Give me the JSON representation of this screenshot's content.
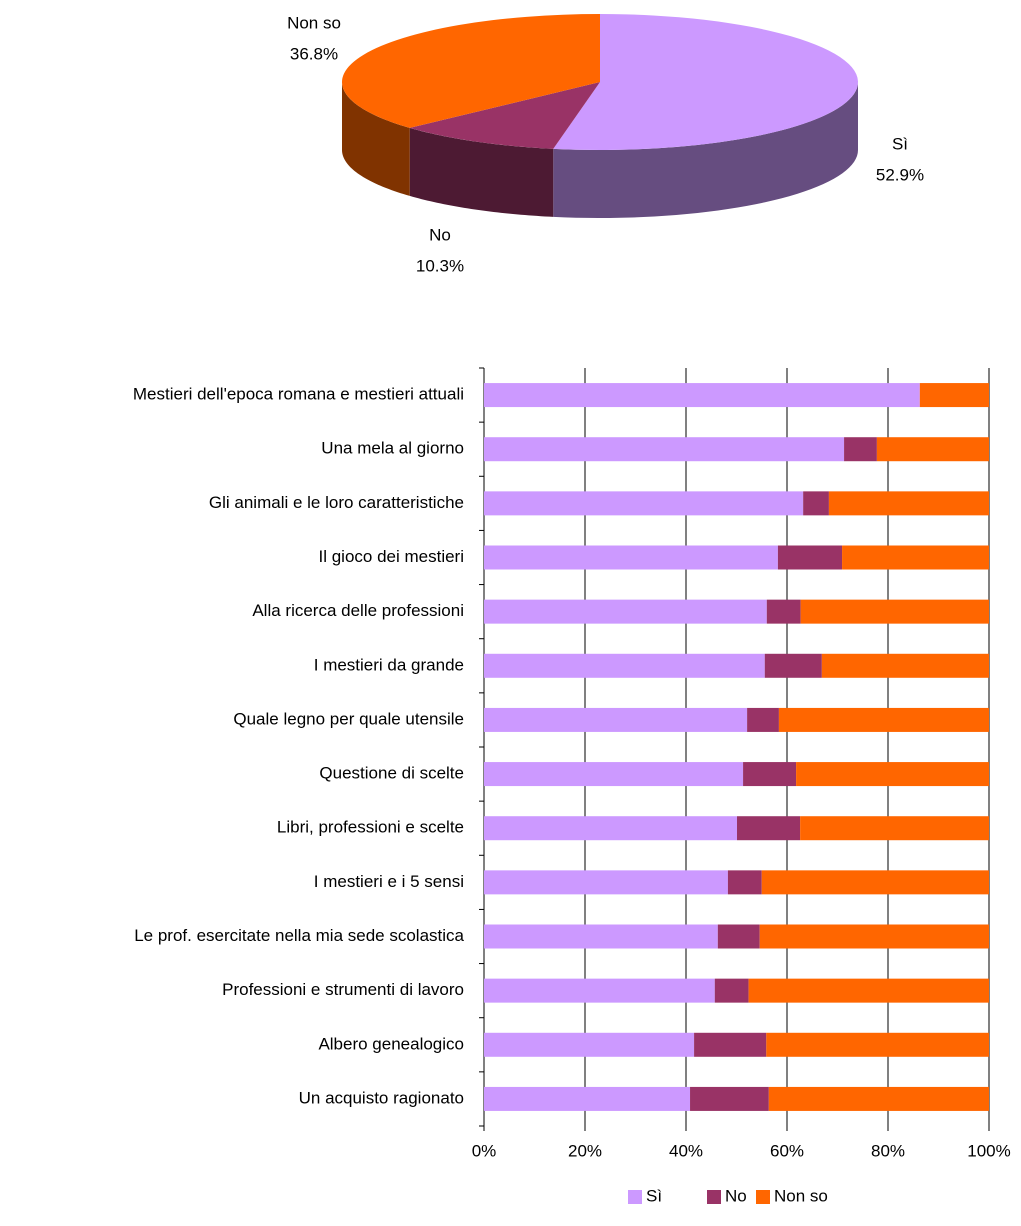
{
  "chart_data": [
    {
      "type": "pie",
      "categories": [
        "Sì",
        "No",
        "Non so"
      ],
      "values": [
        52.9,
        10.3,
        36.8
      ],
      "value_labels": [
        "52.9%",
        "10.3%",
        "36.8%"
      ],
      "colors": [
        "#cc99ff",
        "#993366",
        "#ff6600"
      ]
    },
    {
      "type": "bar",
      "orientation": "horizontal",
      "stacked": true,
      "categories": [
        "Mestieri dell'epoca romana e mestieri attuali",
        "Una mela al giorno",
        "Gli animali e le loro caratteristiche",
        "Il gioco dei mestieri",
        "Alla ricerca delle professioni",
        "I mestieri da grande",
        "Quale legno per quale utensile",
        "Questione di scelte",
        "Libri, professioni e scelte",
        "I mestieri e i 5 sensi",
        "Le prof. esercitate nella mia sede scolastica",
        "Professioni e strumenti di lavoro",
        "Albero genealogico",
        "Un acquisto ragionato"
      ],
      "series": [
        {
          "name": "Sì",
          "color": "#cc99ff",
          "values": [
            86.3,
            71.3,
            63.2,
            58.2,
            56.0,
            55.6,
            52.1,
            51.3,
            50.1,
            48.3,
            46.3,
            45.7,
            41.6,
            40.8
          ]
        },
        {
          "name": "No",
          "color": "#993366",
          "values": [
            0,
            6.5,
            5.1,
            12.7,
            6.7,
            11.3,
            6.3,
            10.5,
            12.5,
            6.7,
            8.3,
            6.7,
            14.3,
            15.6
          ]
        },
        {
          "name": "Non so",
          "color": "#ff6600",
          "values": [
            13.7,
            22.2,
            31.7,
            29.1,
            37.3,
            33.1,
            41.6,
            38.2,
            37.4,
            45.0,
            45.4,
            47.6,
            44.1,
            43.6
          ]
        }
      ],
      "xlim": [
        0,
        100
      ],
      "xticks": [
        {
          "value": 0,
          "label": "0%"
        },
        {
          "value": 20,
          "label": "20%"
        },
        {
          "value": 40,
          "label": "40%"
        },
        {
          "value": 60,
          "label": "60%"
        },
        {
          "value": 80,
          "label": "80%"
        },
        {
          "value": 100,
          "label": "100%"
        }
      ],
      "grid": true,
      "legend": "bottom"
    }
  ]
}
